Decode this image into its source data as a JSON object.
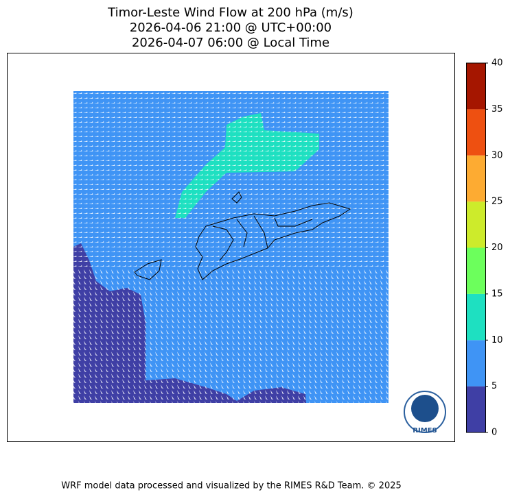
{
  "title": [
    "Timor-Leste Wind Flow at 200 hPa (m/s)",
    "2026-04-06 21:00 @ UTC+00:00",
    "2026-04-07 06:00 @ Local Time"
  ],
  "colorbar": {
    "lim": [
      0,
      40
    ],
    "ticks": [
      0,
      5,
      10,
      15,
      20,
      25,
      30,
      35,
      40
    ],
    "colors": [
      "#3f3fa5",
      "#3f94f5",
      "#1ee0c1",
      "#6cff5c",
      "#cdeb2b",
      "#fdab32",
      "#ee5011",
      "#a51600"
    ]
  },
  "logo": "RIMES",
  "footer": "WRF model data processed and visualized by the RIMES R&D Team. © 2025"
}
